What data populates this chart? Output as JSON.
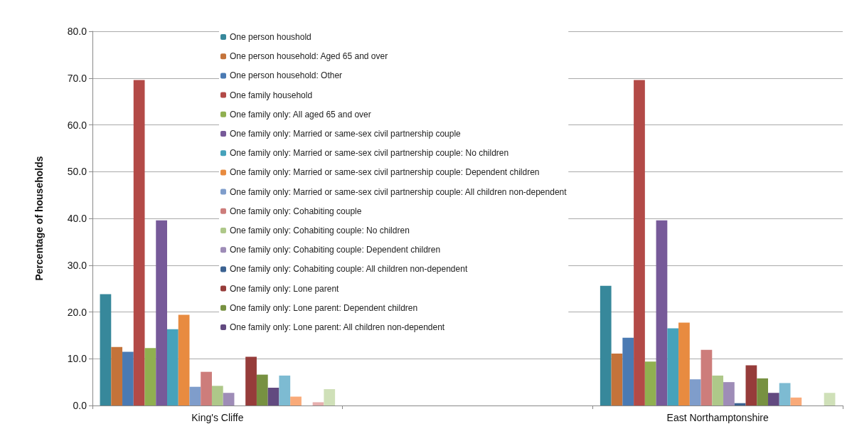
{
  "chart_data": {
    "type": "bar",
    "ylabel": "Percentage of households",
    "categories": [
      "King's Cliffe",
      null,
      "East Northamptonshire"
    ],
    "ylim": [
      0,
      80
    ],
    "yticks": [
      {
        "value": 0,
        "label": "0.0"
      },
      {
        "value": 10,
        "label": "10.0"
      },
      {
        "value": 20,
        "label": "20.0"
      },
      {
        "value": 30,
        "label": "30.0"
      },
      {
        "value": 40,
        "label": "40.0"
      },
      {
        "value": 50,
        "label": "50.0"
      },
      {
        "value": 60,
        "label": "60.0"
      },
      {
        "value": 70,
        "label": "70.0"
      },
      {
        "value": 80,
        "label": "80.0"
      }
    ],
    "grid": "y",
    "legend": "top",
    "series": [
      {
        "name": "One person houshold",
        "color": "#37889b",
        "values": [
          23.8,
          null,
          25.6
        ]
      },
      {
        "name": "One person household: Aged 65 and over",
        "color": "#c4733a",
        "values": [
          12.5,
          null,
          11.1
        ]
      },
      {
        "name": "One person household: Other",
        "color": "#4a7ab3",
        "values": [
          11.5,
          null,
          14.5
        ]
      },
      {
        "name": "One family household",
        "color": "#b34a47",
        "values": [
          69.6,
          null,
          69.6
        ]
      },
      {
        "name": "One family only: All aged 65 and over",
        "color": "#90b050",
        "values": [
          12.3,
          null,
          9.4
        ]
      },
      {
        "name": "One family only: Married or same-sex civil partnership couple",
        "color": "#775a99",
        "values": [
          39.6,
          null,
          39.6
        ]
      },
      {
        "name": "One family only: Married or same-sex civil partnership couple: No children",
        "color": "#46a2bb",
        "values": [
          16.3,
          null,
          16.5
        ]
      },
      {
        "name": "One family only: Married or same-sex civil partnership couple: Dependent children",
        "color": "#e88b40",
        "values": [
          19.4,
          null,
          17.7
        ]
      },
      {
        "name": "One family only: Married or same-sex civil partnership couple: All children non-dependent",
        "color": "#7f9dcb",
        "values": [
          4.0,
          null,
          5.6
        ]
      },
      {
        "name": "One family only: Cohabiting couple",
        "color": "#cd7d7b",
        "values": [
          7.2,
          null,
          11.9
        ]
      },
      {
        "name": "One family only: Cohabiting couple: No children",
        "color": "#aec889",
        "values": [
          4.2,
          null,
          6.4
        ]
      },
      {
        "name": "One family only: Cohabiting couple: Dependent children",
        "color": "#9e8cb7",
        "values": [
          2.7,
          null,
          5.0
        ]
      },
      {
        "name": "One family only: Cohabiting couple: All children non-dependent",
        "color": "#3b6291",
        "values": [
          0,
          null,
          0.5
        ]
      },
      {
        "name": "One family only: Lone parent",
        "color": "#963c3a",
        "values": [
          10.4,
          null,
          8.6
        ]
      },
      {
        "name": "One family only: Lone parent: Dependent children",
        "color": "#779141",
        "values": [
          6.6,
          null,
          5.8
        ]
      },
      {
        "name": "One family only: Lone parent: All children non-dependent",
        "color": "#624a80",
        "values": [
          3.8,
          null,
          2.7
        ]
      },
      {
        "color": "#7dbbd2",
        "values": [
          6.4,
          null,
          4.8
        ]
      },
      {
        "color": "#f9aa79",
        "values": [
          1.9,
          null,
          1.7
        ]
      },
      {
        "color": "#a4b8dc",
        "values": [
          null,
          null,
          null
        ]
      },
      {
        "color": "#e6afae",
        "values": [
          0.7,
          null,
          0
        ]
      },
      {
        "color": "#cfe0b8",
        "values": [
          3.5,
          null,
          2.7
        ]
      }
    ]
  }
}
